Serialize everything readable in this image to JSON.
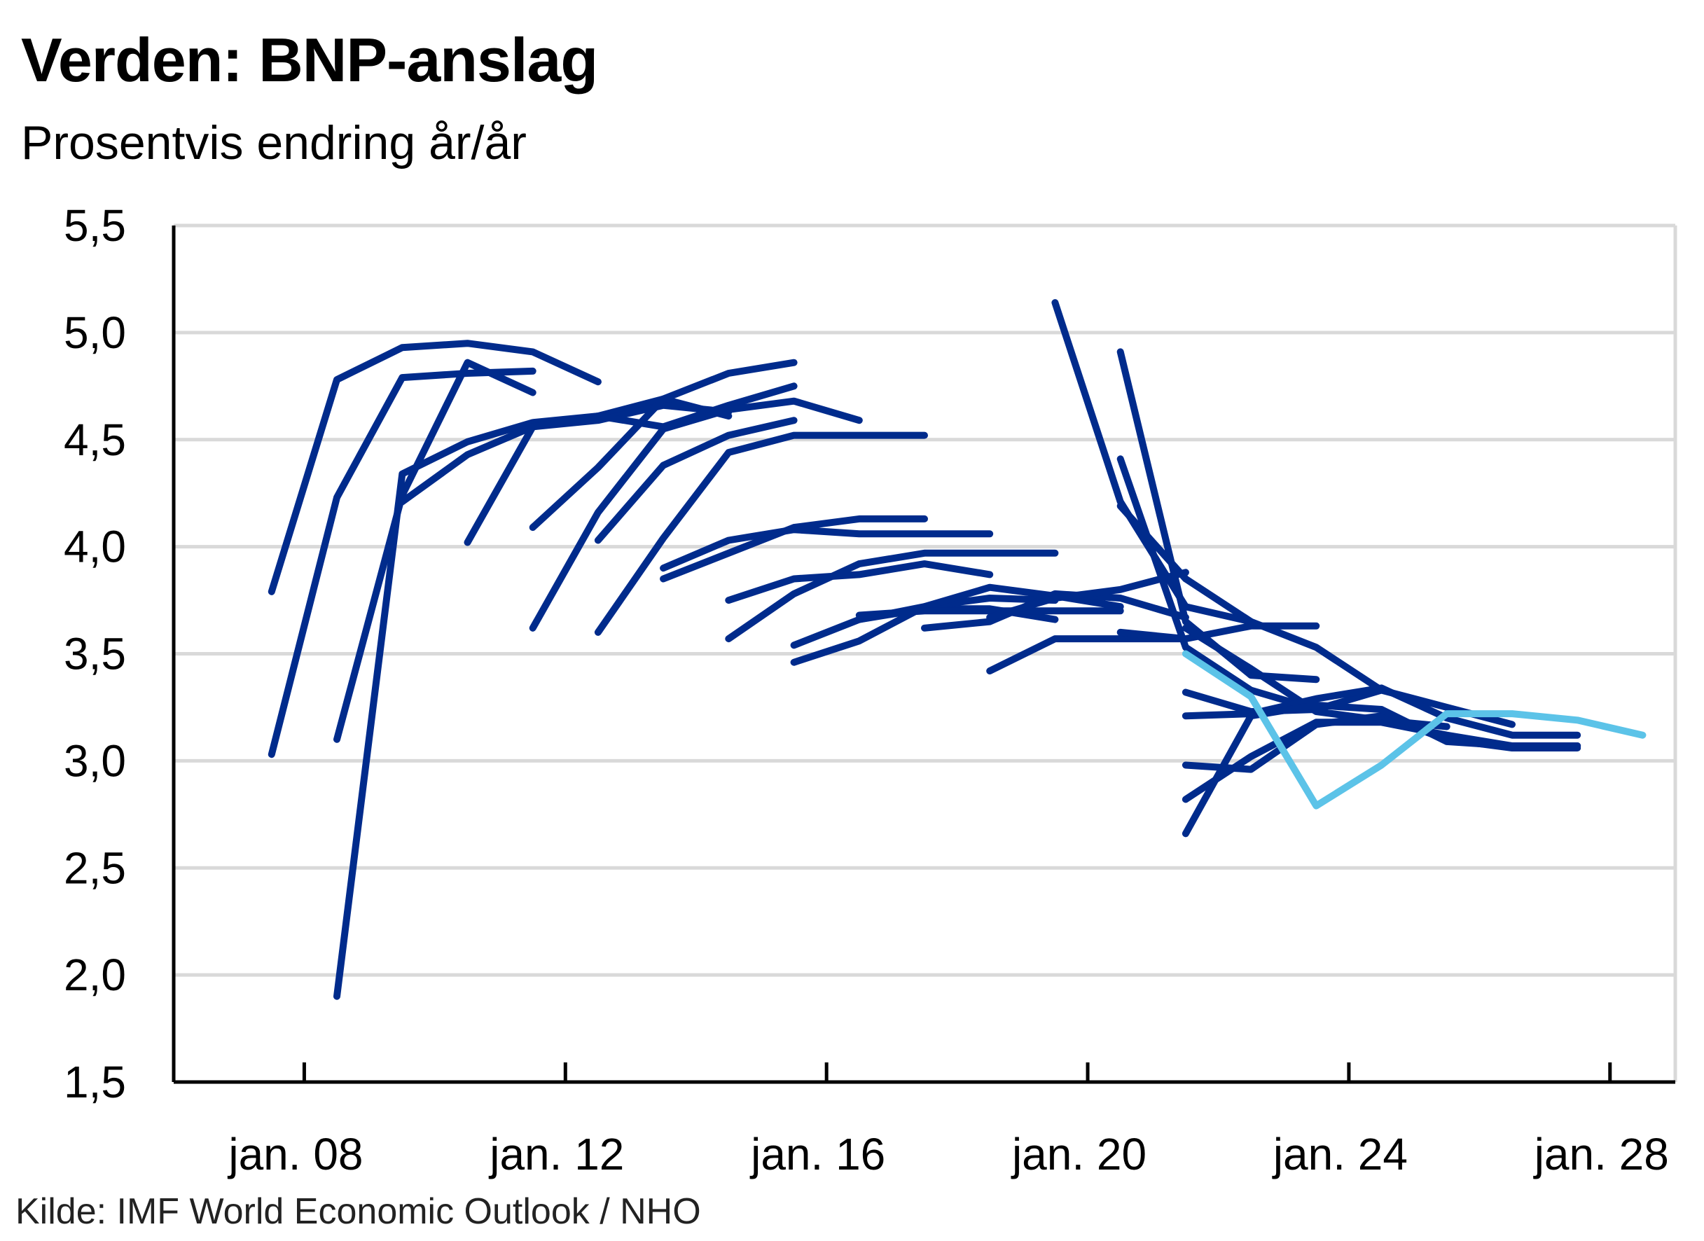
{
  "title": "Verden: BNP-anslag",
  "subtitle": "Prosentvis endring år/år",
  "source": "Kilde: IMF World Economic Outlook / NHO",
  "colors": {
    "vintage": "#002b8c",
    "latest": "#5cc3e8",
    "grid": "#d9d9d9",
    "axis": "#000000"
  },
  "chart_data": {
    "type": "line",
    "title": "Verden: BNP-anslag",
    "subtitle": "Prosentvis endring år/år",
    "xlabel": "",
    "ylabel": "",
    "ylim": [
      1.5,
      5.5
    ],
    "xlim": [
      2006.0,
      2029.0
    ],
    "yticks": [
      "5,5",
      "5,0",
      "4,5",
      "4,0",
      "3,5",
      "3,0",
      "2,5",
      "2,0",
      "1,5"
    ],
    "ytick_values": [
      5.5,
      5.0,
      4.5,
      4.0,
      3.5,
      3.0,
      2.5,
      2.0,
      1.5
    ],
    "xticks": [
      "jan. 08",
      "jan. 12",
      "jan. 16",
      "jan. 20",
      "jan. 24",
      "jan. 28"
    ],
    "xtick_values": [
      2008,
      2012,
      2016,
      2020,
      2024,
      2028
    ],
    "grid": true,
    "legend": "none",
    "series": [
      {
        "highlight": false,
        "x": [
          2007.5,
          2008.5,
          2009.5,
          2010.5,
          2011.5,
          2012.5
        ],
        "y": [
          3.79,
          4.78,
          4.93,
          4.95,
          4.91,
          4.77
        ]
      },
      {
        "highlight": false,
        "x": [
          2007.5,
          2008.5,
          2009.5,
          2010.5,
          2011.5
        ],
        "y": [
          3.03,
          4.23,
          4.79,
          4.81,
          4.82
        ]
      },
      {
        "highlight": false,
        "x": [
          2008.5,
          2009.5,
          2010.5,
          2011.5
        ],
        "y": [
          3.1,
          4.24,
          4.86,
          4.72
        ]
      },
      {
        "highlight": false,
        "x": [
          2008.5,
          2009.5,
          2010.5,
          2011.5,
          2012.5,
          2013.5,
          2014.5
        ],
        "y": [
          1.9,
          4.34,
          4.49,
          4.58,
          4.61,
          4.69,
          4.61
        ]
      },
      {
        "highlight": false,
        "x": [
          2009.5,
          2010.5,
          2011.5,
          2012.5,
          2013.5,
          2014.5
        ],
        "y": [
          4.21,
          4.43,
          4.56,
          4.59,
          4.66,
          4.63
        ]
      },
      {
        "highlight": false,
        "x": [
          2010.5,
          2011.5,
          2012.5,
          2013.5,
          2014.5,
          2015.5
        ],
        "y": [
          4.02,
          4.56,
          4.61,
          4.56,
          4.66,
          4.75
        ]
      },
      {
        "highlight": false,
        "x": [
          2011.5,
          2012.5,
          2013.5,
          2014.5,
          2015.5
        ],
        "y": [
          4.09,
          4.37,
          4.69,
          4.81,
          4.86
        ]
      },
      {
        "highlight": false,
        "x": [
          2011.5,
          2012.5,
          2013.5,
          2014.5,
          2015.5,
          2016.5
        ],
        "y": [
          3.62,
          4.16,
          4.55,
          4.64,
          4.68,
          4.59
        ]
      },
      {
        "highlight": false,
        "x": [
          2012.5,
          2013.5,
          2014.5,
          2015.5,
          2016.5,
          2017.5
        ],
        "y": [
          3.6,
          4.04,
          4.44,
          4.52,
          4.52,
          4.52
        ]
      },
      {
        "highlight": false,
        "x": [
          2012.5,
          2013.5,
          2014.5,
          2015.5
        ],
        "y": [
          4.03,
          4.38,
          4.52,
          4.59
        ]
      },
      {
        "highlight": false,
        "x": [
          2013.5,
          2014.5,
          2015.5,
          2016.5,
          2017.5
        ],
        "y": [
          3.85,
          3.97,
          4.09,
          4.13,
          4.13
        ]
      },
      {
        "highlight": false,
        "x": [
          2013.5,
          2014.5,
          2015.5,
          2016.5,
          2017.5,
          2018.5
        ],
        "y": [
          3.9,
          4.03,
          4.08,
          4.06,
          4.06,
          4.06
        ]
      },
      {
        "highlight": false,
        "x": [
          2014.5,
          2015.5,
          2016.5,
          2017.5,
          2018.5
        ],
        "y": [
          3.75,
          3.85,
          3.87,
          3.92,
          3.87
        ]
      },
      {
        "highlight": false,
        "x": [
          2014.5,
          2015.5,
          2016.5,
          2017.5,
          2018.5,
          2019.5
        ],
        "y": [
          3.57,
          3.78,
          3.92,
          3.97,
          3.97,
          3.97
        ]
      },
      {
        "highlight": false,
        "x": [
          2015.5,
          2016.5,
          2017.5,
          2018.5,
          2019.5
        ],
        "y": [
          3.54,
          3.66,
          3.71,
          3.71,
          3.66
        ]
      },
      {
        "highlight": false,
        "x": [
          2015.5,
          2016.5,
          2017.5,
          2018.5,
          2019.5
        ],
        "y": [
          3.46,
          3.56,
          3.72,
          3.76,
          3.75
        ]
      },
      {
        "highlight": false,
        "x": [
          2016.5,
          2017.5,
          2018.5,
          2019.5,
          2020.5
        ],
        "y": [
          3.66,
          3.72,
          3.81,
          3.77,
          3.72
        ]
      },
      {
        "highlight": false,
        "x": [
          2016.5,
          2017.5,
          2018.5,
          2019.5,
          2020.5
        ],
        "y": [
          3.68,
          3.7,
          3.7,
          3.7,
          3.7
        ]
      },
      {
        "highlight": false,
        "x": [
          2017.5,
          2018.5,
          2019.5,
          2020.5,
          2021.5
        ],
        "y": [
          3.62,
          3.65,
          3.78,
          3.76,
          3.67
        ]
      },
      {
        "highlight": false,
        "x": [
          2018.5,
          2019.5,
          2020.5,
          2021.5
        ],
        "y": [
          3.67,
          3.76,
          3.8,
          3.88
        ]
      },
      {
        "highlight": false,
        "x": [
          2018.5,
          2019.5,
          2020.5,
          2021.5
        ],
        "y": [
          3.42,
          3.57,
          3.57,
          3.57
        ]
      },
      {
        "highlight": false,
        "x": [
          2019.5,
          2020.5,
          2021.5,
          2022.5
        ],
        "y": [
          5.14,
          4.21,
          3.72,
          3.65
        ]
      },
      {
        "highlight": false,
        "x": [
          2020.5,
          2021.5,
          2022.5,
          2023.5
        ],
        "y": [
          4.91,
          3.65,
          3.4,
          3.38
        ]
      },
      {
        "highlight": false,
        "x": [
          2020.5,
          2021.5,
          2022.5,
          2023.5
        ],
        "y": [
          4.41,
          3.53,
          3.33,
          3.24
        ]
      },
      {
        "highlight": false,
        "x": [
          2020.5,
          2021.5,
          2022.5,
          2023.5
        ],
        "y": [
          3.6,
          3.57,
          3.63,
          3.63
        ]
      },
      {
        "highlight": false,
        "x": [
          2020.5,
          2021.5,
          2022.5,
          2023.5,
          2024.5
        ],
        "y": [
          4.19,
          3.85,
          3.65,
          3.53,
          3.33
        ]
      },
      {
        "highlight": false,
        "x": [
          2021.5,
          2022.5,
          2023.5,
          2024.5,
          2025.5
        ],
        "y": [
          3.62,
          3.43,
          3.23,
          3.19,
          3.16
        ]
      },
      {
        "highlight": false,
        "x": [
          2021.5,
          2022.5,
          2023.5,
          2024.5,
          2025.5,
          2026.5
        ],
        "y": [
          3.32,
          3.23,
          3.24,
          3.33,
          3.25,
          3.17
        ]
      },
      {
        "highlight": false,
        "x": [
          2021.5,
          2022.5,
          2023.5,
          2024.5,
          2025.5,
          2026.5,
          2027.5
        ],
        "y": [
          2.82,
          3.02,
          3.18,
          3.18,
          3.12,
          3.07,
          3.07
        ]
      },
      {
        "highlight": false,
        "x": [
          2021.5,
          2022.5,
          2023.5,
          2024.5,
          2025.5,
          2026.5,
          2027.5
        ],
        "y": [
          3.21,
          3.22,
          3.29,
          3.34,
          3.2,
          3.12,
          3.12
        ]
      },
      {
        "highlight": false,
        "x": [
          2021.5,
          2022.5,
          2023.5,
          2024.5,
          2025.5,
          2026.5,
          2027.5
        ],
        "y": [
          2.98,
          2.96,
          3.17,
          3.21,
          3.1,
          3.06,
          3.06
        ]
      },
      {
        "highlight": false,
        "x": [
          2021.5,
          2022.5,
          2023.5,
          2024.5,
          2025.5,
          2026.5,
          2027.5
        ],
        "y": [
          2.66,
          3.21,
          3.26,
          3.24,
          3.09,
          3.07,
          3.07
        ]
      },
      {
        "highlight": true,
        "x": [
          2021.5,
          2022.5,
          2023.5,
          2024.5,
          2025.5,
          2026.5,
          2027.5,
          2028.5
        ],
        "y": [
          3.5,
          3.3,
          2.79,
          2.98,
          3.22,
          3.22,
          3.19,
          3.12
        ]
      }
    ]
  }
}
